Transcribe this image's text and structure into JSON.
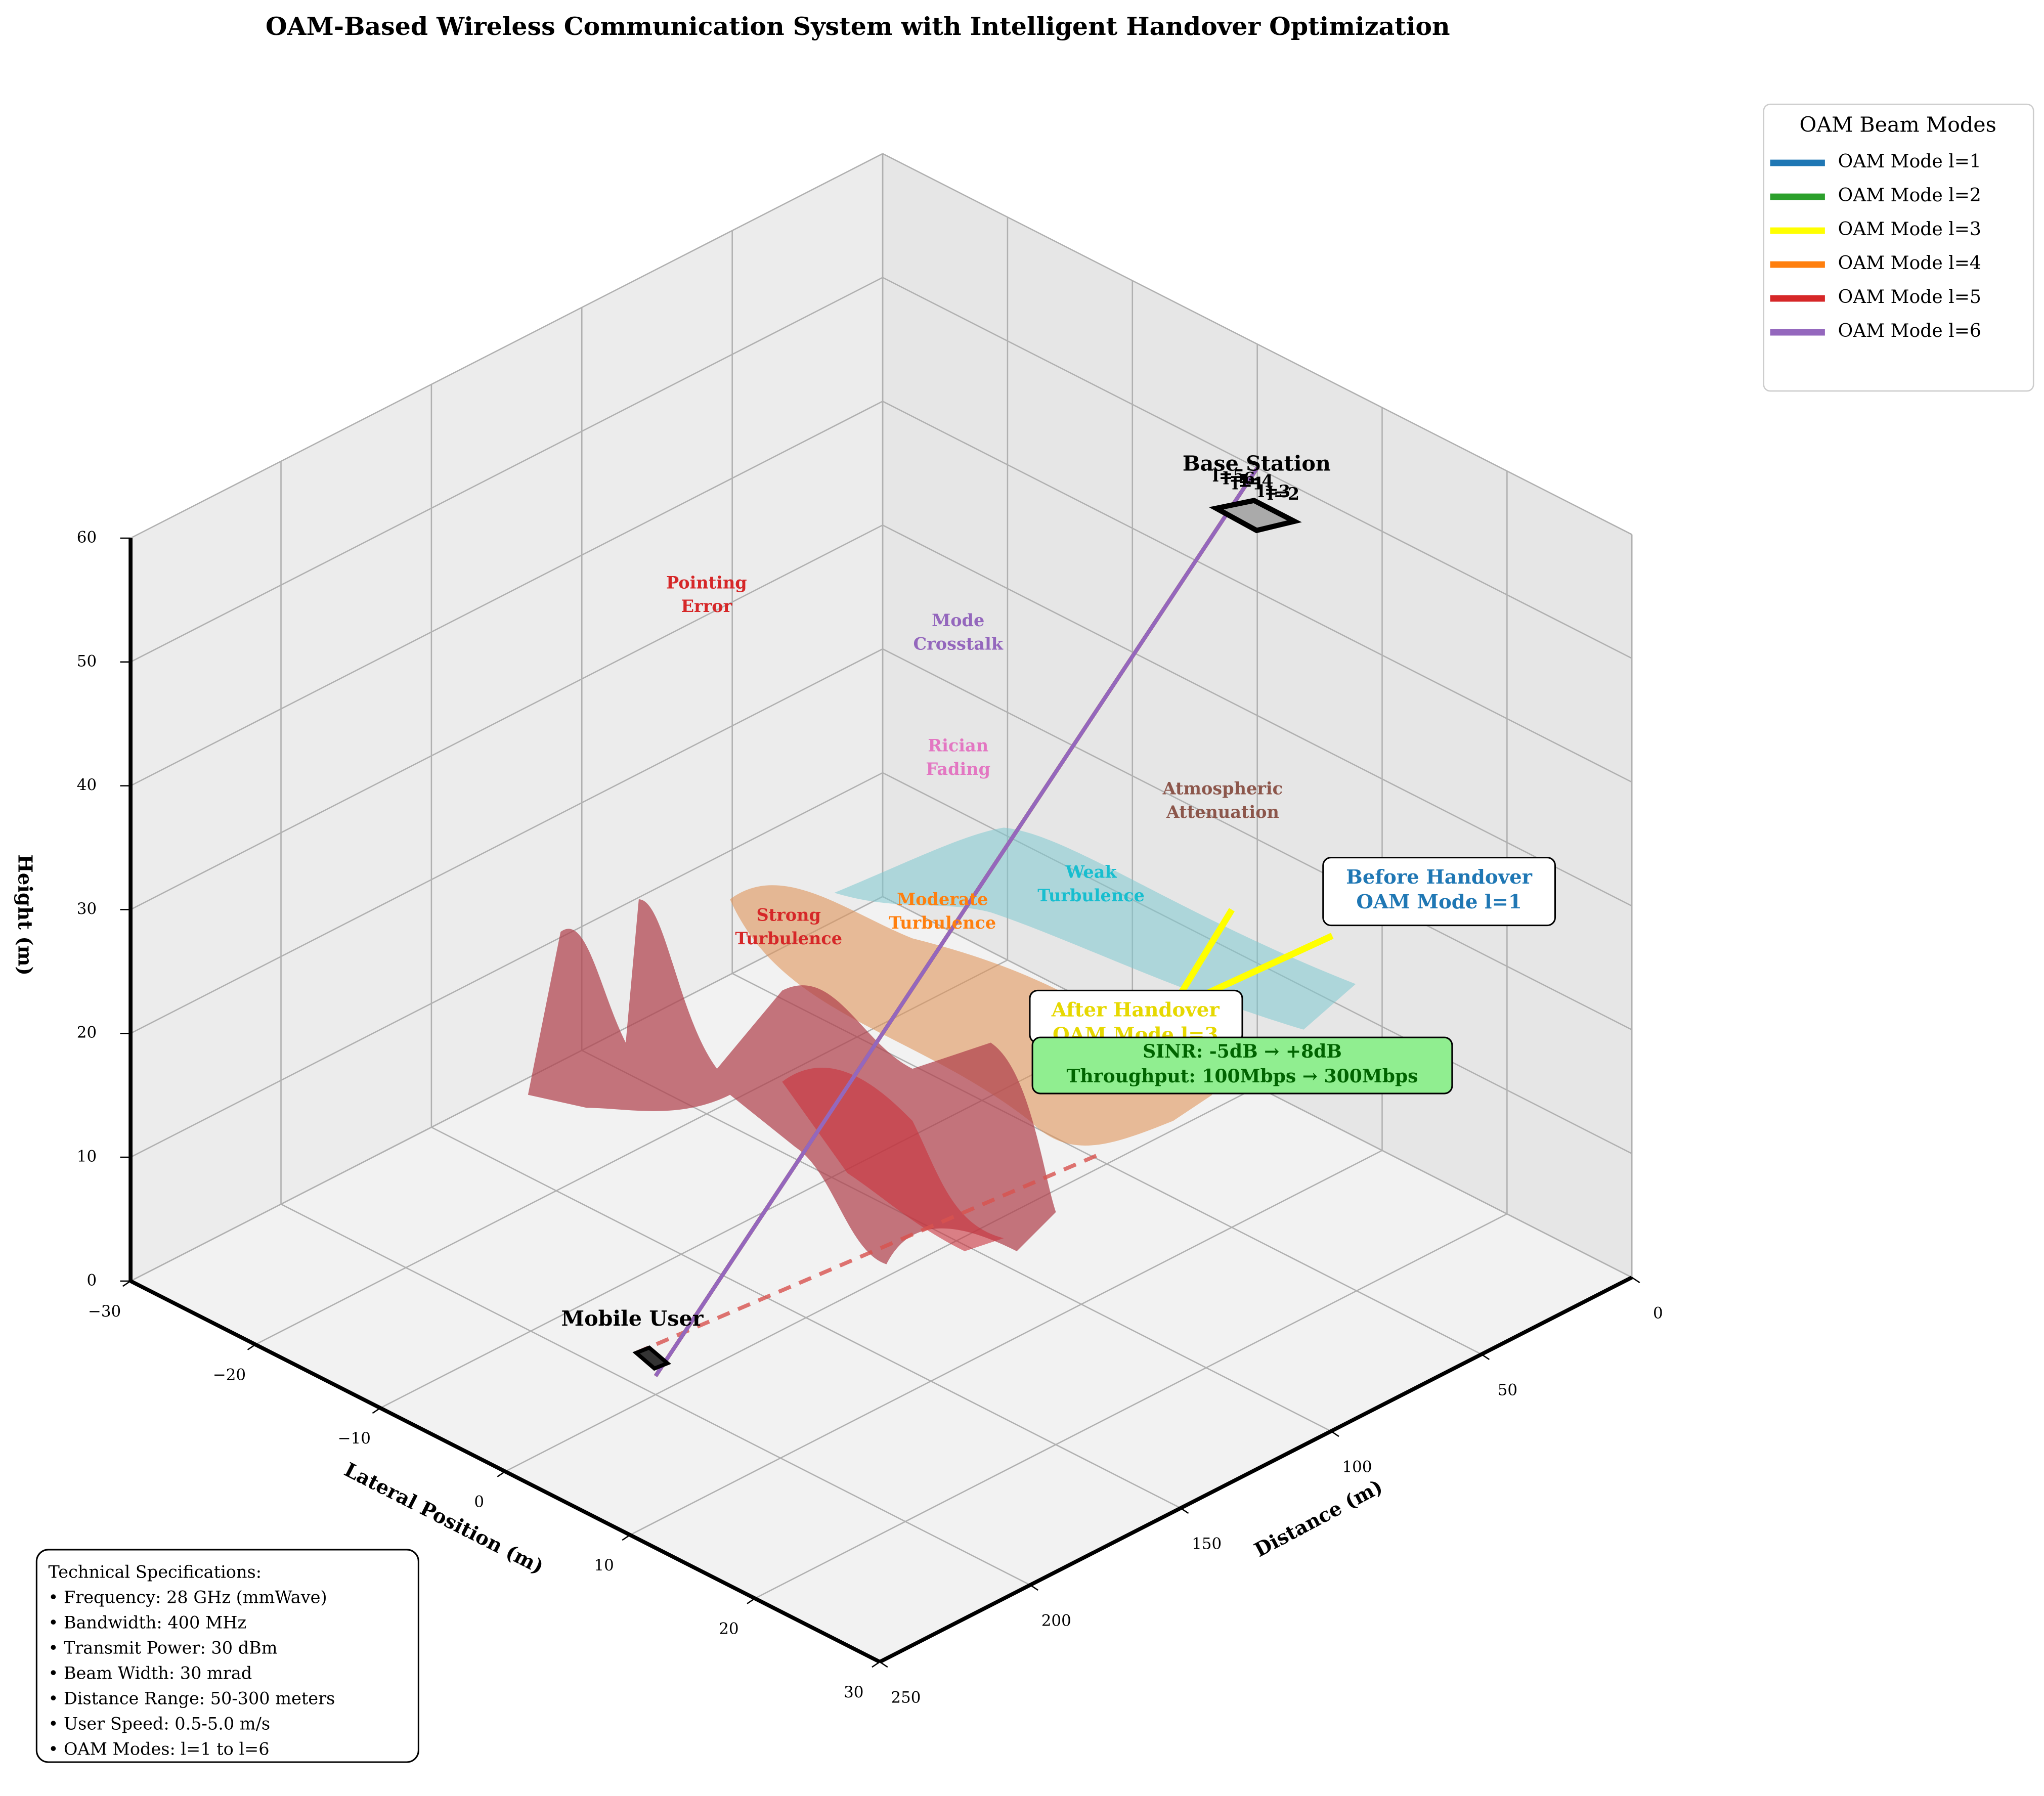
{
  "chart_data": {
    "type": "line3d",
    "title": "OAM-Based Wireless Communication System with Intelligent Handover Optimization",
    "xlabel": "Distance (m)",
    "ylabel": "Lateral Position (m)",
    "zlabel": "Height (m)",
    "xlim": [
      0,
      250
    ],
    "xticks": [
      0,
      50,
      100,
      150,
      200,
      250
    ],
    "ylim": [
      -30,
      30
    ],
    "yticks": [
      {
        "value": -30,
        "label": "−30"
      },
      {
        "value": -20,
        "label": "−20"
      },
      {
        "value": -10,
        "label": "−10"
      },
      0,
      10,
      20,
      30
    ],
    "zlim": [
      0,
      60
    ],
    "zticks": [
      0,
      10,
      20,
      30,
      40,
      50,
      60
    ],
    "grid": true,
    "legend_title": "OAM Beam Modes",
    "series": [
      {
        "name": "OAM Mode l=1",
        "label": "l=1",
        "color": "#1f77b4",
        "x": [
          0,
          200
        ],
        "y": [
          0,
          0
        ],
        "z": [
          50,
          1.5
        ]
      },
      {
        "name": "OAM Mode l=2",
        "label": "l=2",
        "color": "#2ca02c",
        "x": [
          0,
          200
        ],
        "y": [
          0,
          0
        ],
        "z": [
          50,
          1.5
        ]
      },
      {
        "name": "OAM Mode l=3",
        "label": "l=3",
        "color": "#ffff00",
        "x": [
          0,
          200
        ],
        "y": [
          0,
          0
        ],
        "z": [
          50,
          1.5
        ]
      },
      {
        "name": "OAM Mode l=4",
        "label": "l=4",
        "color": "#ff7f0e",
        "x": [
          0,
          200
        ],
        "y": [
          0,
          0
        ],
        "z": [
          50,
          1.5
        ]
      },
      {
        "name": "OAM Mode l=5",
        "label": "l=5",
        "color": "#d62728",
        "x": [
          0,
          200
        ],
        "y": [
          0,
          0
        ],
        "z": [
          50,
          1.5
        ]
      },
      {
        "name": "OAM Mode l=6",
        "label": "l=6",
        "color": "#9467bd",
        "x": [
          0,
          200
        ],
        "y": [
          0,
          0
        ],
        "z": [
          50,
          1.5
        ]
      }
    ],
    "annotations": {
      "base_station": "Base Station",
      "mobile_user": "Mobile User",
      "before_handover": [
        "Before Handover",
        "OAM Mode l=1"
      ],
      "after_handover": [
        "After Handover",
        "OAM Mode l=3"
      ],
      "gain": [
        "SINR: -5dB → +8dB",
        "Throughput: 100Mbps → 300Mbps"
      ],
      "effects": [
        [
          "Pointing",
          "Error"
        ],
        [
          "Mode",
          "Crosstalk"
        ],
        [
          "Rician",
          "Fading"
        ],
        [
          "Atmospheric",
          "Attenuation"
        ],
        [
          "Weak",
          "Turbulence"
        ],
        [
          "Moderate",
          "Turbulence"
        ],
        [
          "Strong",
          "Turbulence"
        ]
      ]
    },
    "specs": [
      "Technical Specifications:",
      "• Frequency: 28 GHz (mmWave)",
      "• Bandwidth: 400 MHz",
      "• Transmit Power: 30 dBm",
      "• Beam Width: 30 mrad",
      "• Distance Range: 50-300 meters",
      "• User Speed: 0.5-5.0 m/s",
      "• OAM Modes: l=1 to l=6"
    ]
  }
}
